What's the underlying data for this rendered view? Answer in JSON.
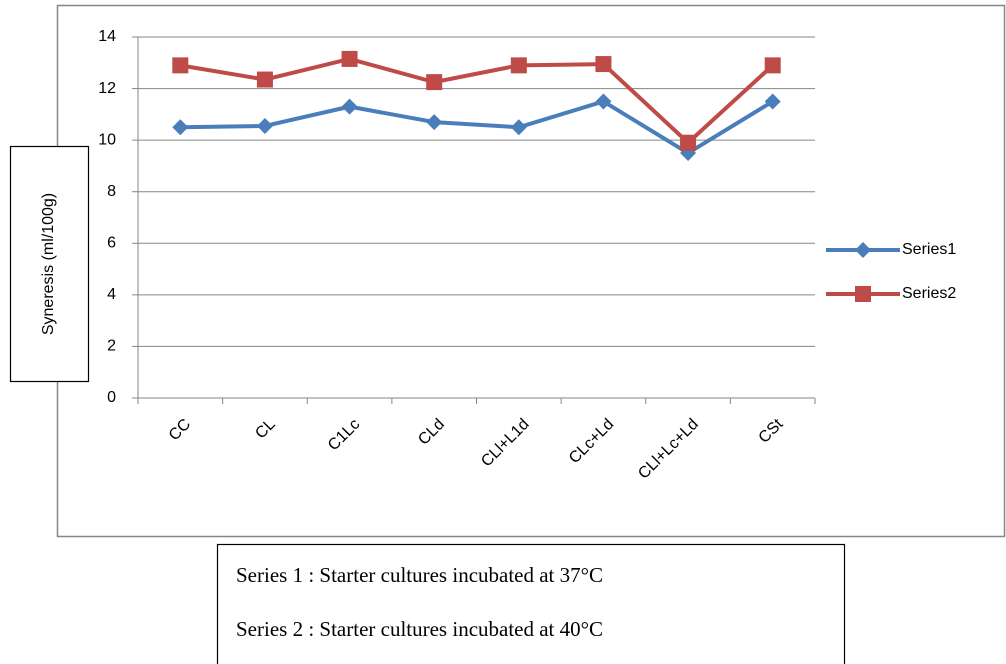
{
  "chart_data": {
    "type": "line",
    "ylabel": "Syneresis (ml/100g)",
    "categories": [
      "CC",
      "CL",
      "C1Lc",
      "CLd",
      "CLl+L1d",
      "CLc+Ld",
      "CLl+Lc+Ld",
      "CSt"
    ],
    "series": [
      {
        "name": "Series1",
        "color": "#4a7ebb",
        "marker": "diamond",
        "values": [
          10.5,
          10.55,
          11.3,
          10.7,
          10.5,
          11.5,
          9.5,
          11.5
        ]
      },
      {
        "name": "Series2",
        "color": "#be4b48",
        "marker": "square",
        "values": [
          12.9,
          12.35,
          13.15,
          12.25,
          12.9,
          12.95,
          9.9,
          12.9
        ]
      }
    ],
    "ylim": [
      0,
      14
    ],
    "yticks": [
      0,
      2,
      4,
      6,
      8,
      10,
      12,
      14
    ],
    "grid": true,
    "legend": "right",
    "annotations": [
      "Series  1 : Starter cultures incubated at 37°C",
      "Series  2 : Starter cultures incubated at 40°C"
    ]
  }
}
